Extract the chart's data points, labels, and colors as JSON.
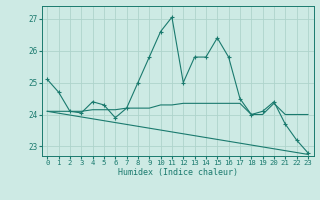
{
  "xlabel": "Humidex (Indice chaleur)",
  "xlim": [
    -0.5,
    23.5
  ],
  "ylim": [
    22.7,
    27.4
  ],
  "yticks": [
    23,
    24,
    25,
    26,
    27
  ],
  "xticks": [
    0,
    1,
    2,
    3,
    4,
    5,
    6,
    7,
    8,
    9,
    10,
    11,
    12,
    13,
    14,
    15,
    16,
    17,
    18,
    19,
    20,
    21,
    22,
    23
  ],
  "bg_color": "#cdeae4",
  "line_color": "#1a7a6e",
  "grid_color": "#aed4cc",
  "line1_x": [
    0,
    1,
    2,
    3,
    4,
    5,
    6,
    7,
    8,
    9,
    10,
    11,
    12,
    13,
    14,
    15,
    16,
    17,
    18,
    19,
    20,
    21,
    22,
    23
  ],
  "line1_y": [
    25.1,
    24.7,
    24.1,
    24.05,
    24.4,
    24.3,
    23.9,
    24.2,
    25.0,
    25.8,
    26.6,
    27.05,
    25.0,
    25.8,
    25.8,
    26.4,
    25.8,
    24.5,
    24.0,
    24.1,
    24.4,
    23.7,
    23.2,
    22.8
  ],
  "line2_x": [
    0,
    1,
    2,
    3,
    4,
    5,
    6,
    7,
    8,
    9,
    10,
    11,
    12,
    13,
    14,
    15,
    16,
    17,
    18,
    19,
    20,
    21,
    22,
    23
  ],
  "line2_y": [
    24.1,
    24.1,
    24.1,
    24.1,
    24.15,
    24.15,
    24.15,
    24.2,
    24.2,
    24.2,
    24.3,
    24.3,
    24.35,
    24.35,
    24.35,
    24.35,
    24.35,
    24.35,
    24.0,
    24.0,
    24.35,
    24.0,
    24.0,
    24.0
  ],
  "line3_x": [
    0,
    23
  ],
  "line3_y": [
    24.1,
    22.75
  ]
}
